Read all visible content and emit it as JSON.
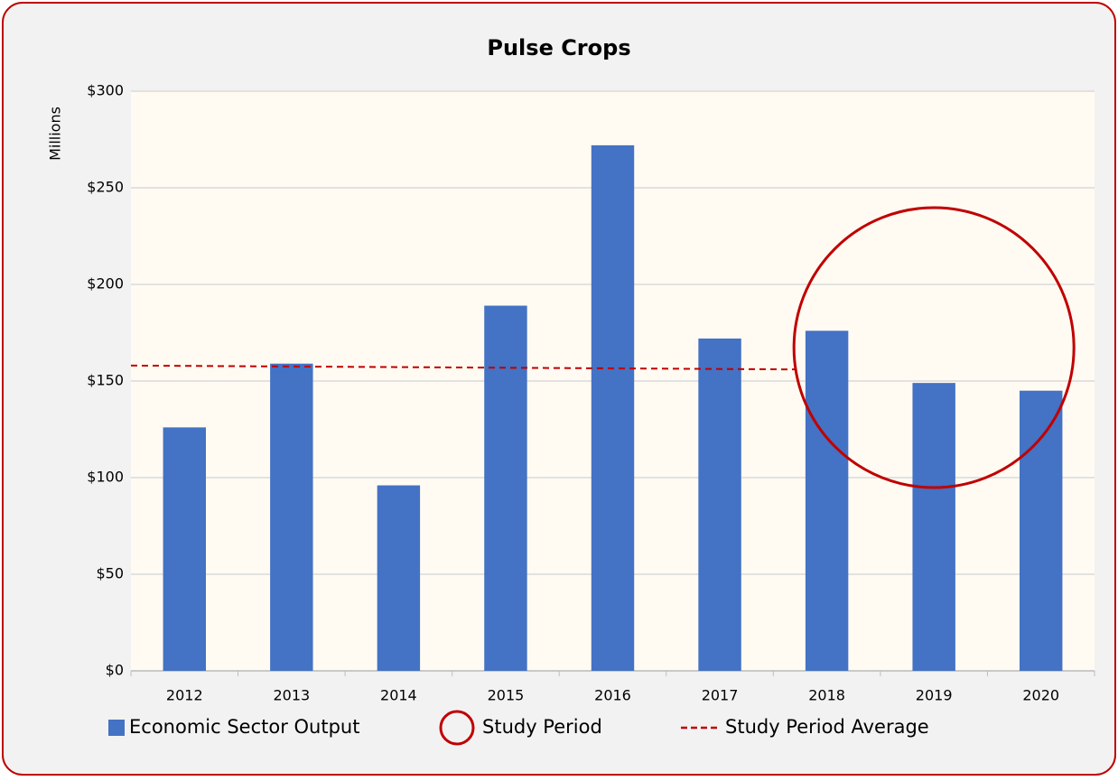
{
  "chart_data": {
    "type": "bar",
    "title": "Pulse Crops",
    "y_label": "Millions",
    "categories": [
      "2012",
      "2013",
      "2014",
      "2015",
      "2016",
      "2017",
      "2018",
      "2019",
      "2020"
    ],
    "series": [
      {
        "name": "Economic Sector Output",
        "color": "#4472c4",
        "values": [
          126,
          159,
          96,
          189,
          272,
          172,
          176,
          149,
          145
        ]
      }
    ],
    "highlight": {
      "name": "Study Period",
      "color": "#c00000"
    },
    "average_line": {
      "name": "Study Period Average",
      "color": "#c00000",
      "values": [
        158,
        156
      ]
    },
    "ylim": [
      0,
      300
    ],
    "yticks": [
      {
        "value": 0,
        "label": "$0"
      },
      {
        "value": 50,
        "label": "$50"
      },
      {
        "value": 100,
        "label": "$100"
      },
      {
        "value": 150,
        "label": "$150"
      },
      {
        "value": 200,
        "label": "$200"
      },
      {
        "value": 250,
        "label": "$250"
      },
      {
        "value": 300,
        "label": "$300"
      }
    ],
    "grid": true
  }
}
